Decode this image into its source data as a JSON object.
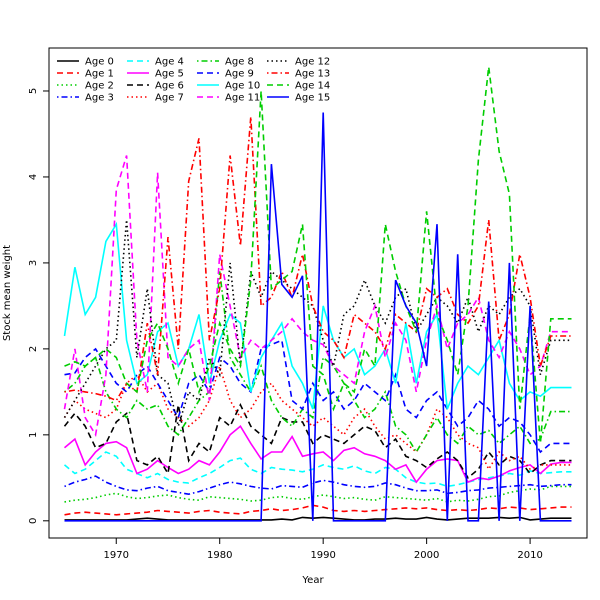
{
  "chart_data": {
    "type": "line",
    "title": "",
    "xlabel": "Year",
    "ylabel": "Stock mean weight",
    "xlim": [
      1963.5,
      2015.5
    ],
    "ylim": [
      -0.2,
      5.5
    ],
    "xticks": [
      1970,
      1980,
      1990,
      2000,
      2010
    ],
    "xtick_labels": [
      "1970",
      "1980",
      "1990",
      "2000",
      "2010"
    ],
    "yticks": [
      0,
      1,
      2,
      3,
      4,
      5
    ],
    "ytick_labels": [
      "0",
      "1",
      "2",
      "3",
      "4",
      "5"
    ],
    "grid": false,
    "legend_position": "top-left",
    "legend_columns": 4,
    "x": [
      1965,
      1966,
      1967,
      1968,
      1969,
      1970,
      1971,
      1972,
      1973,
      1974,
      1975,
      1976,
      1977,
      1978,
      1979,
      1980,
      1981,
      1982,
      1983,
      1984,
      1985,
      1986,
      1987,
      1988,
      1989,
      1990,
      1991,
      1992,
      1993,
      1994,
      1995,
      1996,
      1997,
      1998,
      1999,
      2000,
      2001,
      2002,
      2003,
      2004,
      2005,
      2006,
      2007,
      2008,
      2009,
      2010,
      2011,
      2012,
      2013,
      2014
    ],
    "series": [
      {
        "name": "Age 0",
        "color": "#000000",
        "dash": "solid",
        "values": [
          0.01,
          0.01,
          0.01,
          0.01,
          0.01,
          0.01,
          0.01,
          0.02,
          0.03,
          0.02,
          0.01,
          0.01,
          0.01,
          0.01,
          0.01,
          0.01,
          0.01,
          0.01,
          0.01,
          0.01,
          0.01,
          0.02,
          0.01,
          0.04,
          0.03,
          0.04,
          0.03,
          0.02,
          0.01,
          0.01,
          0.02,
          0.02,
          0.03,
          0.02,
          0.02,
          0.04,
          0.02,
          0.01,
          0.02,
          0.03,
          0.03,
          0.03,
          0.04,
          0.03,
          0.04,
          0.01,
          0.02,
          0.03,
          0.03,
          0.03
        ]
      },
      {
        "name": "Age 1",
        "color": "#ff0000",
        "dash": "dashed",
        "values": [
          0.07,
          0.09,
          0.1,
          0.09,
          0.08,
          0.07,
          0.08,
          0.09,
          0.1,
          0.12,
          0.11,
          0.1,
          0.09,
          0.11,
          0.12,
          0.1,
          0.09,
          0.08,
          0.11,
          0.12,
          0.14,
          0.12,
          0.13,
          0.15,
          0.18,
          0.16,
          0.12,
          0.11,
          0.12,
          0.11,
          0.12,
          0.13,
          0.14,
          0.15,
          0.14,
          0.15,
          0.13,
          0.12,
          0.13,
          0.12,
          0.13,
          0.15,
          0.14,
          0.16,
          0.15,
          0.13,
          0.14,
          0.15,
          0.16,
          0.16
        ]
      },
      {
        "name": "Age 2",
        "color": "#00cd00",
        "dash": "dotted",
        "values": [
          0.22,
          0.24,
          0.25,
          0.27,
          0.3,
          0.32,
          0.28,
          0.26,
          0.27,
          0.29,
          0.3,
          0.27,
          0.25,
          0.24,
          0.28,
          0.27,
          0.26,
          0.25,
          0.23,
          0.24,
          0.27,
          0.28,
          0.26,
          0.25,
          0.28,
          0.3,
          0.28,
          0.26,
          0.27,
          0.25,
          0.24,
          0.28,
          0.27,
          0.26,
          0.25,
          0.24,
          0.26,
          0.22,
          0.24,
          0.23,
          0.25,
          0.28,
          0.29,
          0.33,
          0.35,
          0.37,
          0.36,
          0.4,
          0.4,
          0.4
        ]
      },
      {
        "name": "Age 3",
        "color": "#0000ff",
        "dash": "dotdash",
        "values": [
          0.4,
          0.45,
          0.48,
          0.52,
          0.45,
          0.4,
          0.36,
          0.35,
          0.38,
          0.4,
          0.35,
          0.33,
          0.31,
          0.34,
          0.38,
          0.42,
          0.45,
          0.43,
          0.4,
          0.38,
          0.37,
          0.41,
          0.4,
          0.39,
          0.44,
          0.47,
          0.45,
          0.42,
          0.4,
          0.39,
          0.4,
          0.44,
          0.42,
          0.38,
          0.35,
          0.35,
          0.36,
          0.32,
          0.33,
          0.35,
          0.36,
          0.38,
          0.39,
          0.4,
          0.41,
          0.42,
          0.4,
          0.41,
          0.42,
          0.42
        ]
      },
      {
        "name": "Age 4",
        "color": "#00ffff",
        "dash": "dashed",
        "values": [
          0.65,
          0.55,
          0.6,
          0.7,
          0.8,
          0.75,
          0.6,
          0.55,
          0.5,
          0.55,
          0.48,
          0.45,
          0.44,
          0.5,
          0.55,
          0.62,
          0.7,
          0.73,
          0.6,
          0.55,
          0.62,
          0.6,
          0.59,
          0.57,
          0.6,
          0.65,
          0.62,
          0.6,
          0.64,
          0.58,
          0.55,
          0.62,
          0.6,
          0.5,
          0.45,
          0.43,
          0.44,
          0.4,
          0.42,
          0.45,
          0.48,
          0.5,
          0.52,
          0.55,
          0.53,
          0.58,
          0.55,
          0.56,
          0.57,
          0.57
        ]
      },
      {
        "name": "Age 5",
        "color": "#ff00ff",
        "dash": "solid",
        "values": [
          0.85,
          0.95,
          0.65,
          0.8,
          0.9,
          0.92,
          0.85,
          0.55,
          0.6,
          0.7,
          0.62,
          0.55,
          0.6,
          0.7,
          0.65,
          0.8,
          1.0,
          1.1,
          0.9,
          0.72,
          0.8,
          0.8,
          0.98,
          0.75,
          0.78,
          0.8,
          0.7,
          0.82,
          0.85,
          0.78,
          0.75,
          0.7,
          0.6,
          0.65,
          0.45,
          0.6,
          0.7,
          0.72,
          0.7,
          0.45,
          0.5,
          0.48,
          0.52,
          0.58,
          0.62,
          0.65,
          0.55,
          0.66,
          0.68,
          0.68
        ]
      },
      {
        "name": "Age 6",
        "color": "#000000",
        "dash": "dashed",
        "values": [
          1.1,
          1.25,
          1.1,
          0.85,
          0.9,
          1.15,
          1.25,
          0.7,
          0.65,
          0.75,
          0.55,
          1.35,
          0.7,
          0.9,
          0.8,
          1.2,
          1.1,
          1.35,
          1.1,
          1.0,
          0.9,
          1.2,
          1.15,
          1.15,
          0.9,
          1.0,
          0.95,
          0.9,
          1.0,
          1.1,
          1.05,
          0.85,
          0.95,
          0.75,
          0.7,
          0.62,
          0.72,
          0.8,
          0.7,
          0.5,
          0.6,
          0.8,
          0.65,
          0.75,
          0.7,
          0.55,
          0.65,
          0.7,
          0.7,
          0.7
        ]
      },
      {
        "name": "Age 7",
        "color": "#ff0000",
        "dash": "dotted",
        "values": [
          1.2,
          1.4,
          1.3,
          1.25,
          1.2,
          1.3,
          1.6,
          1.7,
          1.5,
          1.6,
          1.3,
          1.2,
          1.1,
          1.2,
          1.4,
          1.8,
          1.4,
          1.2,
          1.3,
          1.5,
          1.6,
          1.4,
          1.3,
          1.2,
          1.1,
          1.2,
          1.1,
          1.0,
          1.2,
          1.3,
          1.1,
          0.95,
          1.0,
          0.9,
          0.8,
          1.0,
          1.3,
          1.2,
          1.0,
          0.9,
          0.85,
          0.6,
          0.8,
          0.7,
          0.75,
          0.6,
          0.65,
          0.65,
          0.65,
          0.65
        ]
      },
      {
        "name": "Age 8",
        "color": "#00cd00",
        "dash": "dotdash",
        "values": [
          1.5,
          1.6,
          1.8,
          1.9,
          1.5,
          1.3,
          1.2,
          1.4,
          1.3,
          1.35,
          1.1,
          1.0,
          1.2,
          1.4,
          1.5,
          2.9,
          1.9,
          1.7,
          1.5,
          1.8,
          1.4,
          1.2,
          1.1,
          1.3,
          1.2,
          1.9,
          1.8,
          1.6,
          1.4,
          1.2,
          1.3,
          1.5,
          1.1,
          1.0,
          0.8,
          1.0,
          1.2,
          1.0,
          0.9,
          1.1,
          1.0,
          1.05,
          0.9,
          1.0,
          1.1,
          0.9,
          0.95,
          1.27,
          1.27,
          1.27
        ]
      },
      {
        "name": "Age 9",
        "color": "#0000ff",
        "dash": "dashed",
        "values": [
          1.7,
          1.72,
          1.9,
          2.0,
          1.8,
          1.6,
          1.5,
          1.7,
          1.8,
          1.6,
          1.4,
          1.2,
          1.6,
          1.7,
          1.5,
          1.9,
          1.8,
          1.6,
          1.5,
          2.0,
          2.05,
          2.1,
          1.4,
          1.3,
          1.6,
          1.4,
          1.5,
          1.3,
          1.4,
          1.6,
          1.5,
          1.4,
          1.7,
          1.3,
          1.2,
          1.4,
          1.5,
          1.3,
          1.1,
          1.2,
          1.4,
          1.3,
          1.1,
          1.2,
          1.15,
          1.0,
          0.8,
          0.9,
          0.9,
          0.9
        ]
      },
      {
        "name": "Age 10",
        "color": "#00ffff",
        "dash": "solid",
        "values": [
          2.15,
          2.95,
          2.4,
          2.6,
          3.25,
          3.45,
          2.1,
          1.6,
          1.7,
          2.2,
          2.3,
          1.8,
          2.0,
          2.4,
          1.6,
          2.1,
          2.4,
          2.3,
          1.5,
          1.9,
          2.1,
          2.3,
          1.8,
          1.6,
          1.3,
          2.5,
          2.1,
          1.9,
          2.0,
          1.7,
          1.8,
          2.0,
          1.6,
          2.3,
          1.6,
          2.2,
          2.4,
          1.3,
          1.6,
          1.8,
          1.7,
          1.9,
          2.1,
          1.6,
          1.4,
          1.5,
          1.45,
          1.55,
          1.55,
          1.55
        ]
      },
      {
        "name": "Age 11",
        "color": "#ff00ff",
        "dash": "dashed",
        "values": [
          1.3,
          2.0,
          1.2,
          1.0,
          1.7,
          3.85,
          4.25,
          2.1,
          1.5,
          4.05,
          1.9,
          1.8,
          2.0,
          2.1,
          1.4,
          3.1,
          2.5,
          1.9,
          2.1,
          2.0,
          2.1,
          2.2,
          2.35,
          2.2,
          2.1,
          2.05,
          1.8,
          1.7,
          1.6,
          2.2,
          2.5,
          1.9,
          2.3,
          2.1,
          1.5,
          2.1,
          2.5,
          2.0,
          2.3,
          2.4,
          2.6,
          2.1,
          1.9,
          2.2,
          2.0,
          1.7,
          1.8,
          2.2,
          2.2,
          2.2
        ]
      },
      {
        "name": "Age 12",
        "color": "#000000",
        "dash": "dotted",
        "values": [
          1.2,
          1.4,
          1.6,
          1.8,
          2.0,
          2.1,
          3.5,
          1.9,
          2.7,
          1.7,
          1.6,
          1.1,
          1.5,
          1.4,
          1.9,
          1.7,
          3.0,
          1.8,
          2.9,
          2.6,
          2.9,
          2.8,
          2.7,
          2.6,
          2.5,
          2.1,
          1.8,
          2.4,
          2.5,
          2.8,
          2.5,
          2.3,
          2.6,
          2.7,
          2.2,
          2.4,
          2.6,
          2.5,
          2.3,
          2.6,
          2.2,
          2.5,
          2.4,
          2.6,
          2.7,
          2.5,
          1.7,
          2.1,
          2.1,
          2.1
        ]
      },
      {
        "name": "Age 13",
        "color": "#ff0000",
        "dash": "dotdash",
        "values": [
          1.5,
          1.52,
          1.5,
          1.48,
          1.45,
          1.4,
          1.6,
          1.5,
          2.3,
          1.7,
          3.3,
          2.0,
          3.95,
          4.45,
          2.1,
          2.7,
          4.25,
          3.2,
          4.7,
          2.5,
          2.6,
          2.9,
          2.6,
          3.1,
          2.5,
          2.2,
          2.1,
          1.9,
          2.4,
          2.3,
          2.2,
          2.0,
          2.4,
          2.3,
          2.2,
          2.7,
          2.6,
          2.7,
          2.4,
          2.3,
          2.5,
          3.5,
          2.1,
          2.4,
          3.1,
          2.6,
          1.8,
          2.15,
          2.15,
          2.15
        ]
      },
      {
        "name": "Age 14",
        "color": "#00cd00",
        "dash": "dashed",
        "values": [
          1.8,
          1.85,
          1.8,
          1.9,
          2.0,
          1.9,
          1.6,
          1.5,
          2.1,
          2.3,
          2.0,
          1.6,
          2.0,
          1.5,
          1.8,
          2.3,
          2.0,
          1.8,
          2.8,
          5.0,
          2.7,
          2.8,
          2.9,
          3.45,
          1.8,
          1.7,
          1.3,
          1.6,
          1.5,
          2.0,
          1.8,
          3.45,
          2.9,
          2.5,
          2.2,
          3.6,
          2.4,
          2.1,
          1.7,
          2.5,
          4.2,
          5.28,
          4.3,
          3.8,
          1.3,
          2.4,
          0.9,
          2.35,
          2.35,
          2.35
        ]
      },
      {
        "name": "Age 15",
        "color": "#0000ff",
        "dash": "solid",
        "values": [
          0.0,
          0.0,
          0.0,
          0.0,
          0.0,
          0.0,
          0.0,
          0.0,
          0.0,
          0.0,
          0.0,
          0.0,
          0.0,
          0.0,
          0.0,
          0.0,
          0.0,
          0.0,
          0.0,
          0.0,
          4.15,
          2.75,
          2.6,
          2.85,
          0.0,
          4.75,
          0.0,
          0.0,
          0.0,
          0.0,
          0.0,
          0.0,
          2.8,
          2.5,
          2.3,
          1.8,
          3.45,
          0.0,
          3.1,
          0.0,
          0.0,
          2.55,
          0.0,
          3.0,
          0.0,
          2.5,
          0.0,
          0.0,
          0.0,
          0.0
        ]
      }
    ]
  }
}
